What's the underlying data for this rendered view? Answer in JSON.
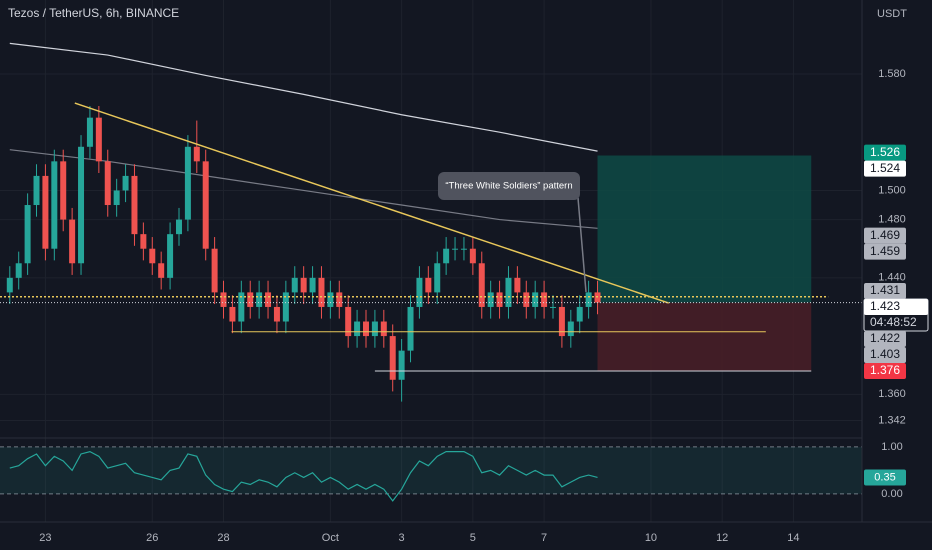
{
  "chart_data": {
    "type": "candlestick",
    "title": "Tezos / TetherUS, 6h, BINANCE",
    "y_axis_label": "USDT",
    "up_color": "#26a69a",
    "down_color": "#ef5350",
    "open": [
      1.43,
      1.44,
      1.45,
      1.49,
      1.51,
      1.46,
      1.52,
      1.48,
      1.45,
      1.53,
      1.55,
      1.52,
      1.49,
      1.5,
      1.51,
      1.47,
      1.46,
      1.45,
      1.44,
      1.47,
      1.48,
      1.53,
      1.52,
      1.46,
      1.43,
      1.42,
      1.41,
      1.43,
      1.42,
      1.43,
      1.42,
      1.41,
      1.43,
      1.44,
      1.43,
      1.44,
      1.42,
      1.43,
      1.42,
      1.4,
      1.41,
      1.4,
      1.41,
      1.4,
      1.37,
      1.39,
      1.42,
      1.44,
      1.43,
      1.45,
      1.46,
      1.46,
      1.46,
      1.45,
      1.42,
      1.43,
      1.42,
      1.44,
      1.43,
      1.42,
      1.43,
      1.42,
      1.42,
      1.4,
      1.41,
      1.42,
      1.43
    ],
    "high": [
      1.448,
      1.458,
      1.498,
      1.518,
      1.518,
      1.528,
      1.528,
      1.488,
      1.538,
      1.558,
      1.558,
      1.528,
      1.508,
      1.518,
      1.518,
      1.478,
      1.468,
      1.458,
      1.478,
      1.488,
      1.538,
      1.548,
      1.528,
      1.468,
      1.438,
      1.428,
      1.438,
      1.438,
      1.438,
      1.438,
      1.428,
      1.438,
      1.448,
      1.448,
      1.448,
      1.448,
      1.438,
      1.438,
      1.428,
      1.418,
      1.418,
      1.418,
      1.418,
      1.408,
      1.398,
      1.428,
      1.448,
      1.448,
      1.458,
      1.468,
      1.468,
      1.468,
      1.468,
      1.458,
      1.438,
      1.438,
      1.448,
      1.448,
      1.438,
      1.438,
      1.438,
      1.428,
      1.428,
      1.418,
      1.428,
      1.438,
      1.438
    ],
    "low": [
      1.422,
      1.432,
      1.442,
      1.482,
      1.452,
      1.452,
      1.472,
      1.442,
      1.442,
      1.522,
      1.512,
      1.482,
      1.482,
      1.492,
      1.462,
      1.452,
      1.442,
      1.432,
      1.432,
      1.462,
      1.472,
      1.512,
      1.452,
      1.422,
      1.412,
      1.402,
      1.402,
      1.412,
      1.412,
      1.412,
      1.402,
      1.402,
      1.422,
      1.422,
      1.422,
      1.412,
      1.412,
      1.412,
      1.392,
      1.392,
      1.392,
      1.392,
      1.392,
      1.362,
      1.355,
      1.382,
      1.412,
      1.422,
      1.422,
      1.442,
      1.452,
      1.452,
      1.442,
      1.412,
      1.412,
      1.412,
      1.412,
      1.422,
      1.412,
      1.412,
      1.412,
      1.412,
      1.392,
      1.392,
      1.402,
      1.412,
      1.415
    ],
    "close": [
      1.44,
      1.45,
      1.49,
      1.51,
      1.46,
      1.52,
      1.48,
      1.45,
      1.53,
      1.55,
      1.52,
      1.49,
      1.5,
      1.51,
      1.47,
      1.46,
      1.45,
      1.44,
      1.47,
      1.48,
      1.53,
      1.52,
      1.46,
      1.43,
      1.42,
      1.41,
      1.43,
      1.42,
      1.43,
      1.42,
      1.41,
      1.43,
      1.44,
      1.43,
      1.44,
      1.42,
      1.43,
      1.42,
      1.4,
      1.41,
      1.4,
      1.41,
      1.4,
      1.37,
      1.39,
      1.42,
      1.44,
      1.43,
      1.45,
      1.46,
      1.46,
      1.46,
      1.45,
      1.42,
      1.43,
      1.42,
      1.44,
      1.43,
      1.42,
      1.43,
      1.42,
      1.42,
      1.4,
      1.41,
      1.42,
      1.43,
      1.423
    ],
    "xlim": [
      -1.1,
      95.7
    ],
    "xticks": [
      {
        "value": 4,
        "label": "23"
      },
      {
        "value": 16,
        "label": "26"
      },
      {
        "value": 24,
        "label": "28"
      },
      {
        "value": 36,
        "label": "Oct"
      },
      {
        "value": 44,
        "label": "3"
      },
      {
        "value": 52,
        "label": "5"
      },
      {
        "value": 60,
        "label": "7"
      },
      {
        "value": 72,
        "label": "10"
      },
      {
        "value": 80,
        "label": "12"
      },
      {
        "value": 88,
        "label": "14"
      }
    ],
    "ylim": [
      1.3355,
      1.6308
    ],
    "yticks": [
      {
        "value": 1.58,
        "label": "1.580"
      },
      {
        "value": 1.5,
        "label": "1.500"
      },
      {
        "value": 1.48,
        "label": "1.480"
      },
      {
        "value": 1.44,
        "label": "1.440"
      },
      {
        "value": 1.36,
        "label": "1.360"
      },
      {
        "value": 1.342,
        "label": "1.342"
      }
    ],
    "grid": true,
    "moving_averages": [
      {
        "color": "#d1d4dc",
        "x": [
          0,
          11,
          22,
          33,
          44,
          55,
          66
        ],
        "values": [
          1.601,
          1.593,
          1.579,
          1.566,
          1.552,
          1.54,
          1.527
        ]
      },
      {
        "color": "#787b86",
        "x": [
          0,
          11,
          22,
          33,
          44,
          55,
          66
        ],
        "values": [
          1.528,
          1.52,
          1.51,
          1.5,
          1.49,
          1.48,
          1.474
        ]
      }
    ],
    "trendline": {
      "color": "#e8c75a",
      "x": [
        7.3,
        74
      ],
      "values": [
        1.56,
        1.4227
      ]
    },
    "level_line": {
      "color": "#e8c75a",
      "x": [
        -1.1,
        91.9
      ],
      "value": 1.427
    },
    "support_line": {
      "color": "#e8c75a",
      "x": [
        24.9,
        84.9
      ]
    },
    "stop_line": {
      "color": "#d1d4dc",
      "x": [
        41,
        90
      ]
    },
    "position": {
      "start": 66,
      "end": 90,
      "profit_color": "#0e4a45",
      "loss_color": "#4a1f27"
    },
    "annotation": "“Three White Soldiers” pattern",
    "current_price": {
      "value": 1.423,
      "countdown": "04:48:52"
    },
    "price_labels": [
      {
        "value": 1.526,
        "bg": "#089981",
        "fg": "#ffffff"
      },
      {
        "value": 1.524,
        "bg": "#ffffff",
        "fg": "#131722"
      },
      {
        "value": 1.469,
        "bg": "#b2b5be",
        "fg": "#131722"
      },
      {
        "value": 1.459,
        "bg": "#b2b5be",
        "fg": "#131722"
      },
      {
        "value": 1.431,
        "bg": "#b2b5be",
        "fg": "#131722"
      },
      {
        "value": 1.422,
        "bg": "#b2b5be",
        "fg": "#131722"
      },
      {
        "value": 1.403,
        "bg": "#b2b5be",
        "fg": "#131722"
      },
      {
        "value": 1.376,
        "bg": "#f23645",
        "fg": "#ffffff"
      }
    ],
    "oscillator": {
      "color": "#26a69a",
      "ylim": [
        -0.45,
        1.19
      ],
      "yticks": [
        {
          "value": 1,
          "label": "1.00"
        },
        {
          "value": 0,
          "label": "0.00"
        }
      ],
      "values": [
        0.55,
        0.6,
        0.75,
        0.85,
        0.6,
        0.8,
        0.7,
        0.5,
        0.85,
        0.9,
        0.8,
        0.55,
        0.6,
        0.65,
        0.45,
        0.4,
        0.35,
        0.3,
        0.5,
        0.55,
        0.85,
        0.8,
        0.4,
        0.2,
        0.1,
        0.05,
        0.25,
        0.2,
        0.3,
        0.25,
        0.15,
        0.35,
        0.45,
        0.35,
        0.45,
        0.25,
        0.35,
        0.25,
        0.1,
        0.2,
        0.1,
        0.2,
        0.1,
        -0.15,
        0.1,
        0.45,
        0.7,
        0.6,
        0.8,
        0.9,
        0.9,
        0.9,
        0.8,
        0.45,
        0.5,
        0.4,
        0.6,
        0.5,
        0.4,
        0.5,
        0.4,
        0.4,
        0.15,
        0.25,
        0.35,
        0.4,
        0.35
      ]
    }
  }
}
